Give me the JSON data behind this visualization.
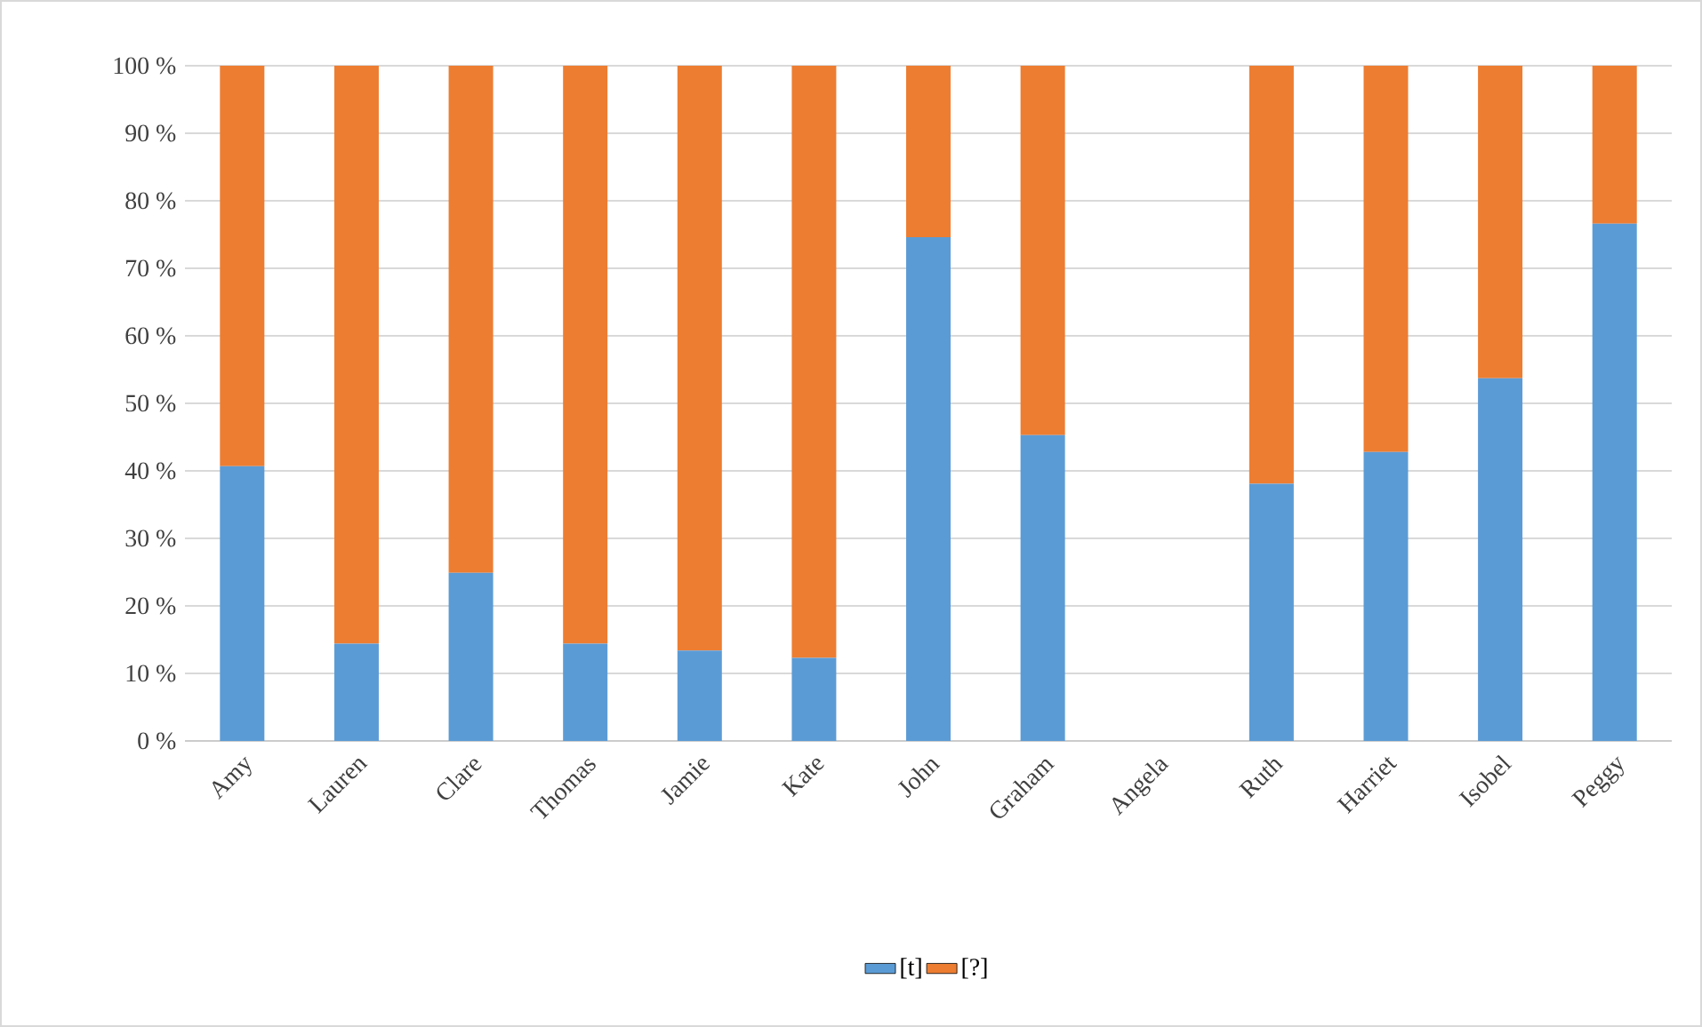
{
  "chart_data": {
    "type": "bar",
    "stacked": true,
    "categories": [
      "Amy",
      "Lauren",
      "Clare",
      "Thomas",
      "Jamie",
      "Kate",
      "John",
      "Graham",
      "Angela",
      "Ruth",
      "Harriet",
      "Isobel",
      "Peggy"
    ],
    "series": [
      {
        "name": "[t]",
        "color": "#5b9bd5",
        "values": [
          40.7,
          14.4,
          24.9,
          14.4,
          13.4,
          12.3,
          74.6,
          45.3,
          null,
          38.1,
          42.8,
          53.7,
          76.6
        ]
      },
      {
        "name": "[?]",
        "color": "#ed7d31",
        "values": [
          59.3,
          85.6,
          75.1,
          85.6,
          86.6,
          87.7,
          25.4,
          54.7,
          null,
          61.9,
          57.2,
          46.3,
          23.4
        ]
      }
    ],
    "ylim": [
      0,
      100
    ],
    "yticks": [
      {
        "value": 0,
        "label": "0 %"
      },
      {
        "value": 10,
        "label": "10 %"
      },
      {
        "value": 20,
        "label": "20 %"
      },
      {
        "value": 30,
        "label": "30 %"
      },
      {
        "value": 40,
        "label": "40 %"
      },
      {
        "value": 50,
        "label": "50 %"
      },
      {
        "value": 60,
        "label": "60 %"
      },
      {
        "value": 70,
        "label": "70 %"
      },
      {
        "value": 80,
        "label": "80 %"
      },
      {
        "value": 90,
        "label": "90 %"
      },
      {
        "value": 100,
        "label": "100 %"
      }
    ],
    "grid": "y",
    "legend": "bottom"
  }
}
